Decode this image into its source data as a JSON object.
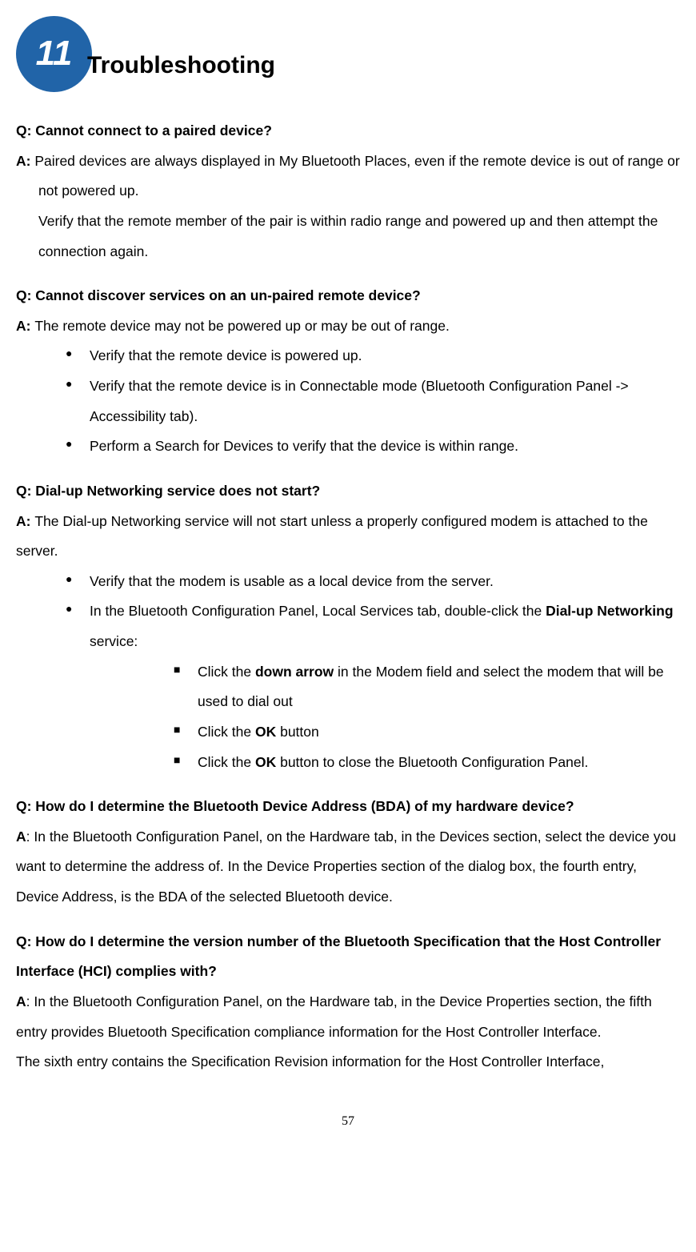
{
  "chapter": {
    "number": "11",
    "title": "Troubleshooting",
    "badge_bg": "#2164a8",
    "badge_fg": "#ffffff"
  },
  "qa": [
    {
      "q": "Q: Cannot connect to a paired device?",
      "a_prefix": "A: ",
      "a_text": "Paired devices are always displayed in My Bluetooth Places, even if the remote device is out of range or not powered up.",
      "a_cont": "Verify that the remote member of the pair is within radio range and powered up and then attempt the connection again."
    },
    {
      "q": "Q: Cannot discover services on an un-paired remote device?",
      "a_prefix": "A: ",
      "a_text": "The remote device may not be powered up or may be out of range.",
      "bullets": [
        " Verify that the remote device is powered up.",
        "Verify that the remote device is in Connectable mode (Bluetooth Configuration Panel -> Accessibility tab).",
        " Perform a Search for Devices to verify that the device is within range."
      ]
    },
    {
      "q": "Q: Dial-up Networking service does not start?",
      "a_prefix": "A: ",
      "a_text": "The Dial-up Networking service will not start unless a properly configured modem is attached to the server.",
      "bullets_dial": {
        "b1": "Verify that the modem is usable as a local device from the server.",
        "b2_pre": "In the Bluetooth Configuration Panel, Local Services tab, double-click the ",
        "b2_bold": "Dial-up Networking",
        "b2_post": " service:",
        "sub": {
          "s1_pre": "Click the ",
          "s1_bold": "down arrow",
          "s1_post": " in the Modem field and select the modem that will be used to dial out",
          "s2_pre": "Click the ",
          "s2_bold": "OK",
          "s2_post": " button",
          "s3_pre": "Click the ",
          "s3_bold": "OK",
          "s3_post": " button to close the Bluetooth Configuration Panel."
        }
      }
    },
    {
      "q": "Q: How do I determine the Bluetooth Device Address (BDA) of my hardware device?",
      "a_prefix": "A",
      "a_text": ": In the Bluetooth Configuration Panel, on the Hardware tab, in the Devices section, select the device you want to determine the address of. In the Device Properties section of the dialog box, the fourth entry, Device Address, is the BDA of the selected Bluetooth device."
    },
    {
      "q": "Q: How do I determine the version number of the Bluetooth Specification that the Host Controller Interface (HCI) complies with?",
      "a_prefix": "A",
      "a_text": ": In the Bluetooth Configuration Panel, on the Hardware tab, in the Device Properties section, the fifth entry provides Bluetooth Specification compliance information for the Host Controller Interface.",
      "a_cont": "The sixth entry contains the Specification Revision information for the Host Controller Interface,"
    }
  ],
  "page_number": "57"
}
